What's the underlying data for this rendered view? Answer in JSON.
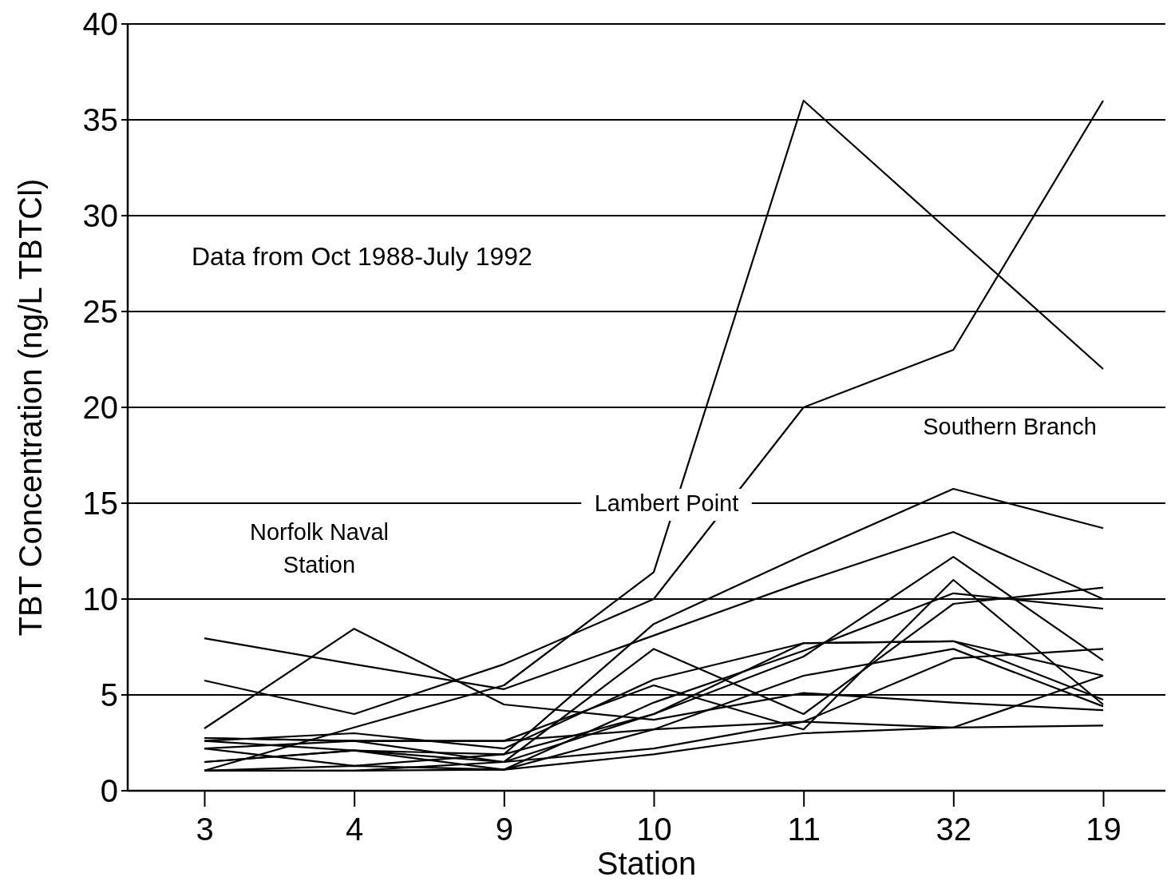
{
  "chart_data": {
    "type": "line",
    "xlabel": "Station",
    "ylabel": "TBT Concentration (ng/L TBTCl)",
    "categories": [
      "3",
      "4",
      "9",
      "10",
      "11",
      "32",
      "19"
    ],
    "ylim": [
      0,
      40
    ],
    "yticks": [
      0,
      5,
      10,
      15,
      20,
      25,
      30,
      35,
      40
    ],
    "grid": "y",
    "marker": "none",
    "line_style": "solid",
    "annotations": [
      "Data from Oct 1988-July 1992",
      "Norfolk Naval\nStation",
      "Lambert Point",
      "Southern Branch"
    ],
    "series": [
      {
        "color": "#000000",
        "values": [
          7.95,
          6.6,
          5.3,
          8.1,
          10.9,
          13.5,
          10.0
        ]
      },
      {
        "color": "#000000",
        "values": [
          5.75,
          4.0,
          6.6,
          10.0,
          20.0,
          23.0,
          36.0
        ]
      },
      {
        "color": "#000000",
        "values": [
          3.25,
          8.45,
          4.5,
          3.7,
          5.1,
          4.6,
          4.2
        ]
      },
      {
        "color": "#000000",
        "values": [
          1.05,
          3.3,
          5.5,
          11.4,
          36.0,
          29.0,
          22.0
        ]
      },
      {
        "color": "#000000",
        "values": [
          2.2,
          1.3,
          1.9,
          8.7,
          12.3,
          15.75,
          13.7
        ]
      },
      {
        "color": "#000000",
        "values": [
          2.75,
          2.6,
          1.5,
          7.4,
          4.0,
          9.75,
          10.6
        ]
      },
      {
        "color": "#000000",
        "values": [
          2.6,
          3.0,
          2.2,
          5.8,
          7.7,
          7.8,
          6.0
        ]
      },
      {
        "color": "#000000",
        "values": [
          1.5,
          2.1,
          1.1,
          4.6,
          7.3,
          10.3,
          9.5
        ]
      },
      {
        "color": "#000000",
        "values": [
          1.5,
          2.1,
          1.9,
          4.0,
          7.0,
          12.2,
          6.8
        ]
      },
      {
        "color": "#000000",
        "values": [
          1.05,
          1.05,
          1.1,
          3.2,
          6.0,
          7.4,
          4.4
        ]
      },
      {
        "color": "#000000",
        "values": [
          2.2,
          2.6,
          2.6,
          5.5,
          3.2,
          11.0,
          4.5
        ]
      },
      {
        "color": "#000000",
        "values": [
          2.75,
          2.6,
          2.6,
          3.2,
          3.6,
          6.9,
          7.4
        ]
      },
      {
        "color": "#000000",
        "values": [
          2.6,
          2.1,
          1.5,
          4.0,
          7.7,
          7.8,
          4.75
        ]
      },
      {
        "color": "#000000",
        "values": [
          1.05,
          1.05,
          1.5,
          2.2,
          3.6,
          3.3,
          6.0
        ]
      },
      {
        "color": "#000000",
        "values": [
          1.05,
          1.3,
          1.1,
          1.9,
          3.0,
          3.3,
          3.4
        ]
      }
    ]
  }
}
